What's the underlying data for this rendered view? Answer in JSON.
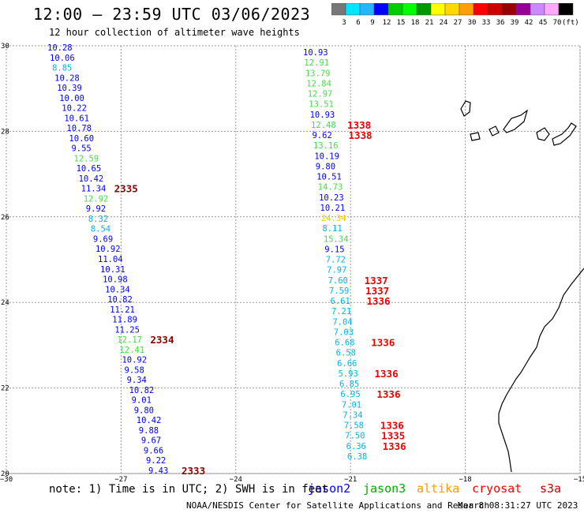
{
  "title": "12:00 – 23:59 UTC 03/06/2023",
  "subtitle": "12 hour collection of altimeter wave heights",
  "colorbar": {
    "labels": [
      "3",
      "6",
      "9",
      "12",
      "15",
      "18",
      "21",
      "24",
      "27",
      "30",
      "33",
      "36",
      "39",
      "42",
      "45",
      "70"
    ],
    "unit": "(ft)",
    "colors": [
      "#777777",
      "#00e5ff",
      "#22b6ff",
      "#0000ff",
      "#00cc00",
      "#00ff00",
      "#009900",
      "#ffff00",
      "#ffd800",
      "#ffa000",
      "#ff0000",
      "#cc0000",
      "#990000",
      "#990099",
      "#cc88ff",
      "#ffaaff",
      "#000000"
    ]
  },
  "axes": {
    "x_ticks": [
      "−30",
      "−27",
      "−24",
      "−21",
      "−18",
      "−15"
    ],
    "y_ticks": [
      "30",
      "28",
      "26",
      "24",
      "22",
      "20"
    ]
  },
  "note": "note: 1) Time is in UTC; 2) SWH is in feet",
  "missions": [
    {
      "name": "jason2",
      "color": "#0000ff"
    },
    {
      "name": "jason3",
      "color": "#00aa00"
    },
    {
      "name": "altika",
      "color": "#ff9900"
    },
    {
      "name": "cryosat",
      "color": "#ff0000"
    },
    {
      "name": "s3a",
      "color": "#cc0000"
    }
  ],
  "credit": "NOAA/NESDIS Center for Satellite Applications and Research",
  "timestamp": "Mar  8 08:31:27 UTC 2023",
  "track_west": {
    "values": [
      "10.28",
      "10.06",
      "8.85",
      "10.28",
      "10.39",
      "10.00",
      "10.22",
      "10.61",
      "10.78",
      "10.60",
      "9.55",
      "12.59",
      "10.65",
      "10.42",
      "11.34",
      "12.92",
      "9.92",
      "8.32",
      "8.54",
      "9.69",
      "10.92",
      "11.04",
      "10.31",
      "10.98",
      "10.34",
      "10.82",
      "11.21",
      "11.89",
      "11.25",
      "12.17",
      "12.41",
      "10.92",
      "9.58",
      "9.34",
      "10.82",
      "9.01",
      "9.80",
      "10.42",
      "9.88",
      "9.67",
      "9.66",
      "9.22",
      "9.43"
    ],
    "colors": [
      "b",
      "b",
      "c",
      "b",
      "b",
      "b",
      "b",
      "b",
      "b",
      "b",
      "b",
      "g",
      "b",
      "b",
      "b",
      "g",
      "b",
      "c",
      "c",
      "b",
      "b",
      "b",
      "b",
      "b",
      "b",
      "b",
      "b",
      "b",
      "b",
      "g",
      "g",
      "b",
      "b",
      "b",
      "b",
      "b",
      "b",
      "b",
      "b",
      "b",
      "b",
      "b",
      "b"
    ],
    "times": [
      {
        "label": "2335",
        "index": 14
      },
      {
        "label": "2334",
        "index": 29
      },
      {
        "label": "2333",
        "index": 42
      }
    ]
  },
  "track_east": {
    "values": [
      "10.93",
      "12.91",
      "13.79",
      "12.84",
      "12.97",
      "13.51",
      "10.93",
      "12.48",
      "9.62",
      "13.16",
      "10.19",
      "9.80",
      "10.51",
      "14.73",
      "10.23",
      "10.21",
      "24.34",
      "8.11",
      "15.34",
      "9.15",
      "7.72",
      "7.97",
      "7.60",
      "7.59",
      "6.61",
      "7.21",
      "7.04",
      "7.03",
      "6.68",
      "6.58",
      "6.66",
      "5.93",
      "6.85",
      "6.95",
      "7.01",
      "7.34",
      "7.58",
      "7.50",
      "6.36",
      "6.38"
    ],
    "colors": [
      "b",
      "g",
      "g",
      "g",
      "g",
      "g",
      "b",
      "g",
      "b",
      "g",
      "b",
      "b",
      "b",
      "g",
      "b",
      "b",
      "y",
      "c",
      "g",
      "b",
      "c",
      "c",
      "c",
      "c",
      "c",
      "c",
      "c",
      "c",
      "c",
      "c",
      "c",
      "c",
      "c",
      "c",
      "c",
      "c",
      "c",
      "c",
      "c",
      "c"
    ],
    "times": [
      {
        "label": "1338",
        "index": 7
      },
      {
        "label": "1338",
        "index": 8
      },
      {
        "label": "1337",
        "index": 22
      },
      {
        "label": "1337",
        "index": 23
      },
      {
        "label": "1336",
        "index": 24
      },
      {
        "label": "1336",
        "index": 28
      },
      {
        "label": "1336",
        "index": 31
      },
      {
        "label": "1336",
        "index": 33
      },
      {
        "label": "1336",
        "index": 36
      },
      {
        "label": "1335",
        "index": 37
      },
      {
        "label": "1336",
        "index": 38
      }
    ]
  }
}
